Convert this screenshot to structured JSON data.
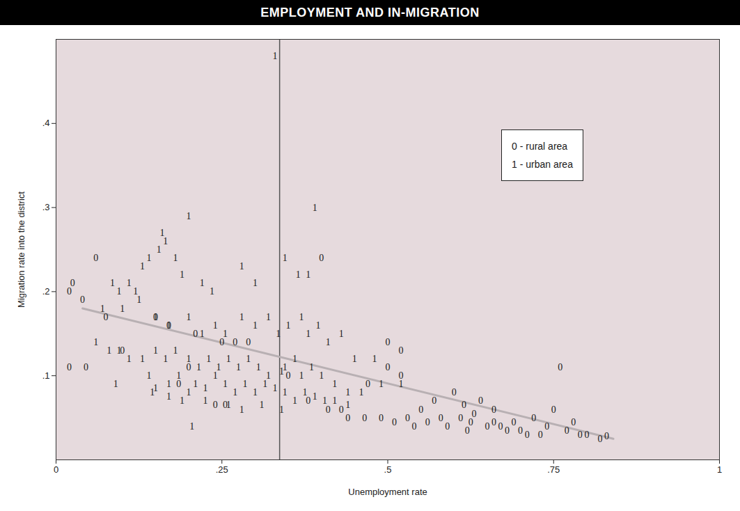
{
  "chart_data": {
    "type": "scatter",
    "title": "EMPLOYMENT AND IN-MIGRATION",
    "x_label": "Unemployment rate",
    "y_label": "Migration rate into the district",
    "xlim": [
      0,
      1
    ],
    "ylim": [
      0,
      0.5
    ],
    "xticks": [
      0,
      {
        "value": 0.25,
        "label": ".25"
      },
      {
        "value": 0.5,
        "label": ".5"
      },
      {
        "value": 0.75,
        "label": ".75"
      },
      1
    ],
    "yticks": [
      {
        "value": 0.1,
        "label": ".1"
      },
      {
        "value": 0.2,
        "label": ".2"
      },
      {
        "value": 0.3,
        "label": ".3"
      },
      {
        "value": 0.4,
        "label": ".4"
      }
    ],
    "legend": "right",
    "grid": false,
    "series": [
      {
        "name": "0 - rural area",
        "marker": "0",
        "color": "#1a1a1a",
        "x": [
          0.02,
          0.025,
          0.06,
          0.04,
          0.02,
          0.045,
          0.075,
          0.1,
          0.15,
          0.17,
          0.21,
          0.25,
          0.27,
          0.29,
          0.185,
          0.24,
          0.255,
          0.2,
          0.4,
          0.5,
          0.52,
          0.52,
          0.5,
          0.47,
          0.465,
          0.49,
          0.51,
          0.53,
          0.55,
          0.57,
          0.58,
          0.6,
          0.615,
          0.625,
          0.64,
          0.66,
          0.67,
          0.69,
          0.7,
          0.72,
          0.74,
          0.75,
          0.76,
          0.77,
          0.78,
          0.79,
          0.8,
          0.82,
          0.83,
          0.71,
          0.73,
          0.68,
          0.65,
          0.62,
          0.59,
          0.56,
          0.54,
          0.43,
          0.44,
          0.38,
          0.41,
          0.35,
          0.61,
          0.66,
          0.63
        ],
        "values": [
          0.2,
          0.21,
          0.24,
          0.19,
          0.11,
          0.11,
          0.17,
          0.13,
          0.17,
          0.16,
          0.15,
          0.14,
          0.14,
          0.14,
          0.09,
          0.065,
          0.065,
          0.11,
          0.24,
          0.14,
          0.13,
          0.1,
          0.11,
          0.09,
          0.05,
          0.05,
          0.045,
          0.05,
          0.06,
          0.07,
          0.05,
          0.08,
          0.065,
          0.045,
          0.07,
          0.06,
          0.04,
          0.045,
          0.035,
          0.05,
          0.04,
          0.06,
          0.11,
          0.035,
          0.045,
          0.03,
          0.03,
          0.025,
          0.028,
          0.03,
          0.03,
          0.035,
          0.04,
          0.035,
          0.04,
          0.045,
          0.04,
          0.06,
          0.05,
          0.07,
          0.06,
          0.1,
          0.05,
          0.045,
          0.055
        ]
      },
      {
        "name": "1 - urban area",
        "marker": "1",
        "color": "#1a1a1a",
        "x": [
          0.33,
          0.2,
          0.16,
          0.165,
          0.18,
          0.13,
          0.14,
          0.155,
          0.19,
          0.22,
          0.235,
          0.28,
          0.3,
          0.39,
          0.345,
          0.365,
          0.38,
          0.085,
          0.095,
          0.11,
          0.12,
          0.07,
          0.1,
          0.125,
          0.15,
          0.17,
          0.2,
          0.22,
          0.24,
          0.255,
          0.28,
          0.3,
          0.32,
          0.335,
          0.35,
          0.37,
          0.38,
          0.395,
          0.41,
          0.43,
          0.45,
          0.48,
          0.08,
          0.095,
          0.11,
          0.13,
          0.15,
          0.165,
          0.18,
          0.2,
          0.215,
          0.23,
          0.245,
          0.26,
          0.275,
          0.29,
          0.305,
          0.32,
          0.345,
          0.36,
          0.37,
          0.385,
          0.4,
          0.42,
          0.44,
          0.46,
          0.49,
          0.52,
          0.09,
          0.14,
          0.15,
          0.17,
          0.185,
          0.2,
          0.21,
          0.225,
          0.24,
          0.255,
          0.27,
          0.285,
          0.3,
          0.315,
          0.33,
          0.345,
          0.36,
          0.375,
          0.39,
          0.405,
          0.42,
          0.44,
          0.145,
          0.17,
          0.19,
          0.205,
          0.225,
          0.26,
          0.28,
          0.31,
          0.34,
          0.06,
          0.34
        ],
        "values": [
          0.48,
          0.29,
          0.27,
          0.26,
          0.24,
          0.23,
          0.24,
          0.25,
          0.22,
          0.21,
          0.2,
          0.23,
          0.21,
          0.3,
          0.24,
          0.22,
          0.22,
          0.21,
          0.2,
          0.21,
          0.2,
          0.18,
          0.18,
          0.19,
          0.17,
          0.16,
          0.17,
          0.15,
          0.16,
          0.15,
          0.17,
          0.16,
          0.17,
          0.15,
          0.16,
          0.17,
          0.15,
          0.16,
          0.14,
          0.15,
          0.12,
          0.12,
          0.13,
          0.13,
          0.12,
          0.12,
          0.13,
          0.12,
          0.13,
          0.12,
          0.11,
          0.12,
          0.11,
          0.12,
          0.11,
          0.12,
          0.11,
          0.1,
          0.11,
          0.12,
          0.1,
          0.11,
          0.1,
          0.09,
          0.08,
          0.08,
          0.09,
          0.09,
          0.09,
          0.1,
          0.085,
          0.09,
          0.1,
          0.08,
          0.09,
          0.085,
          0.1,
          0.09,
          0.08,
          0.09,
          0.08,
          0.09,
          0.085,
          0.08,
          0.07,
          0.08,
          0.075,
          0.07,
          0.07,
          0.065,
          0.08,
          0.075,
          0.07,
          0.04,
          0.07,
          0.065,
          0.06,
          0.065,
          0.06,
          0.14,
          0.105
        ]
      }
    ],
    "trend_line": {
      "x": [
        0.04,
        0.84
      ],
      "values": [
        0.18,
        0.025
      ],
      "color": "#b8b0b3"
    },
    "vertical_line": {
      "x": 0.337,
      "color": "#555555"
    }
  }
}
